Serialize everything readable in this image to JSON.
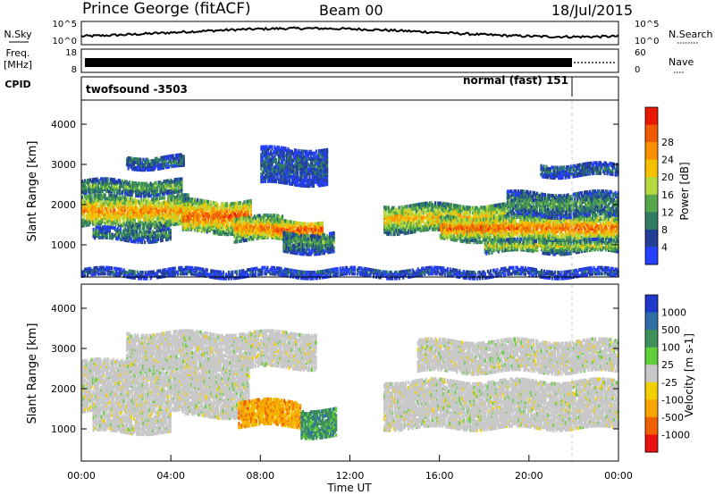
{
  "header": {
    "station": "Prince George (fitACF)",
    "beam": "Beam 00",
    "date": "18/Jul/2015"
  },
  "left_labels": {
    "nsky": "N.Sky",
    "freq_line1": "Freq.",
    "freq_line2": "[MHz]",
    "cpid": "CPID"
  },
  "right_labels": {
    "nsearch": "N.Search",
    "nave": "Nave"
  },
  "noise_axis": {
    "left_ticks": [
      "10^5",
      "10^0"
    ],
    "right_ticks": [
      "10^5",
      "10^0"
    ]
  },
  "freq_axis": {
    "left_ticks": [
      "18",
      "8"
    ],
    "right_ticks": [
      "60",
      "0"
    ]
  },
  "cpid": {
    "left": "twofsound -3503",
    "right": "normal (fast) 151"
  },
  "chart_data": [
    {
      "type": "heatmap",
      "name": "power",
      "ylabel": "Slant Range [km]",
      "yticks": [
        1000,
        2000,
        3000,
        4000
      ],
      "ylim": [
        200,
        4600
      ],
      "xlim": [
        0,
        24
      ],
      "colorbar": {
        "label": "Power [dB]",
        "ticks": [
          4,
          8,
          12,
          16,
          20,
          24,
          28
        ],
        "range": [
          0,
          32
        ],
        "colors": [
          "#2540ff",
          "#233e96",
          "#2f7d62",
          "#57a84a",
          "#b6d940",
          "#f5c000",
          "#f89000",
          "#f05a00",
          "#e81900"
        ]
      },
      "bands": [
        {
          "t0": 0.0,
          "t1": 4.8,
          "r0": 1450,
          "r1": 2200,
          "level": 0.62
        },
        {
          "t0": 0.0,
          "t1": 4.5,
          "r0": 2250,
          "r1": 2600,
          "level": 0.35
        },
        {
          "t0": 0.5,
          "t1": 4.0,
          "r0": 1100,
          "r1": 1400,
          "level": 0.28
        },
        {
          "t0": 2.0,
          "t1": 4.6,
          "r0": 2900,
          "r1": 3200,
          "level": 0.22
        },
        {
          "t0": 4.5,
          "t1": 7.6,
          "r0": 1300,
          "r1": 2100,
          "level": 0.7
        },
        {
          "t0": 6.8,
          "t1": 9.0,
          "r0": 1100,
          "r1": 1700,
          "level": 0.65
        },
        {
          "t0": 8.5,
          "t1": 10.8,
          "r0": 1100,
          "r1": 1600,
          "level": 0.72
        },
        {
          "t0": 9.0,
          "t1": 11.3,
          "r0": 800,
          "r1": 1300,
          "level": 0.3
        },
        {
          "t0": 8.0,
          "t1": 11.0,
          "r0": 2500,
          "r1": 3400,
          "level": 0.18
        },
        {
          "t0": 13.5,
          "t1": 19.0,
          "r0": 1300,
          "r1": 2000,
          "level": 0.55
        },
        {
          "t0": 16.0,
          "t1": 24.0,
          "r0": 1100,
          "r1": 1700,
          "level": 0.68
        },
        {
          "t0": 18.0,
          "t1": 24.0,
          "r0": 800,
          "r1": 1100,
          "level": 0.45
        },
        {
          "t0": 19.0,
          "t1": 24.0,
          "r0": 1700,
          "r1": 2300,
          "level": 0.3
        },
        {
          "t0": 20.5,
          "t1": 24.0,
          "r0": 2700,
          "r1": 3000,
          "level": 0.2
        },
        {
          "t0": 0.0,
          "t1": 24.0,
          "r0": 200,
          "r1": 400,
          "level": 0.15
        }
      ]
    },
    {
      "type": "heatmap",
      "name": "velocity",
      "ylabel": "Slant Range [km]",
      "xlabel": "Time UT",
      "yticks": [
        1000,
        2000,
        3000,
        4000
      ],
      "ylim": [
        200,
        4600
      ],
      "xlim": [
        0,
        24
      ],
      "xticks": [
        "00:00",
        "04:00",
        "08:00",
        "12:00",
        "16:00",
        "20:00",
        "00:00"
      ],
      "colorbar": {
        "label": "Velocity [m s-1]",
        "ticks": [
          1000,
          500,
          100,
          25,
          -25,
          -100,
          -500,
          -1000
        ],
        "colors": [
          "#2038c8",
          "#2f6fa8",
          "#3e8f5a",
          "#5fd03a",
          "#c8c8c8",
          "#f2d000",
          "#f7a300",
          "#f06000",
          "#e81010"
        ]
      },
      "bands": [
        {
          "t0": 0.0,
          "t1": 4.8,
          "r0": 1400,
          "r1": 2300,
          "v": "gray"
        },
        {
          "t0": 0.0,
          "t1": 4.5,
          "r0": 2300,
          "r1": 2700,
          "v": "gray"
        },
        {
          "t0": 0.5,
          "t1": 4.0,
          "r0": 900,
          "r1": 1400,
          "v": "gray"
        },
        {
          "t0": 4.5,
          "t1": 7.5,
          "r0": 1300,
          "r1": 2500,
          "v": "gray"
        },
        {
          "t0": 2.0,
          "t1": 10.5,
          "r0": 2500,
          "r1": 3400,
          "v": "gray"
        },
        {
          "t0": 7.0,
          "t1": 9.8,
          "r0": 1050,
          "r1": 1700,
          "v": "orange"
        },
        {
          "t0": 9.8,
          "t1": 11.4,
          "r0": 800,
          "r1": 1500,
          "v": "green"
        },
        {
          "t0": 13.5,
          "t1": 24.0,
          "r0": 1000,
          "r1": 2200,
          "v": "gray"
        },
        {
          "t0": 15.0,
          "t1": 24.0,
          "r0": 2400,
          "r1": 3200,
          "v": "gray"
        }
      ]
    }
  ]
}
